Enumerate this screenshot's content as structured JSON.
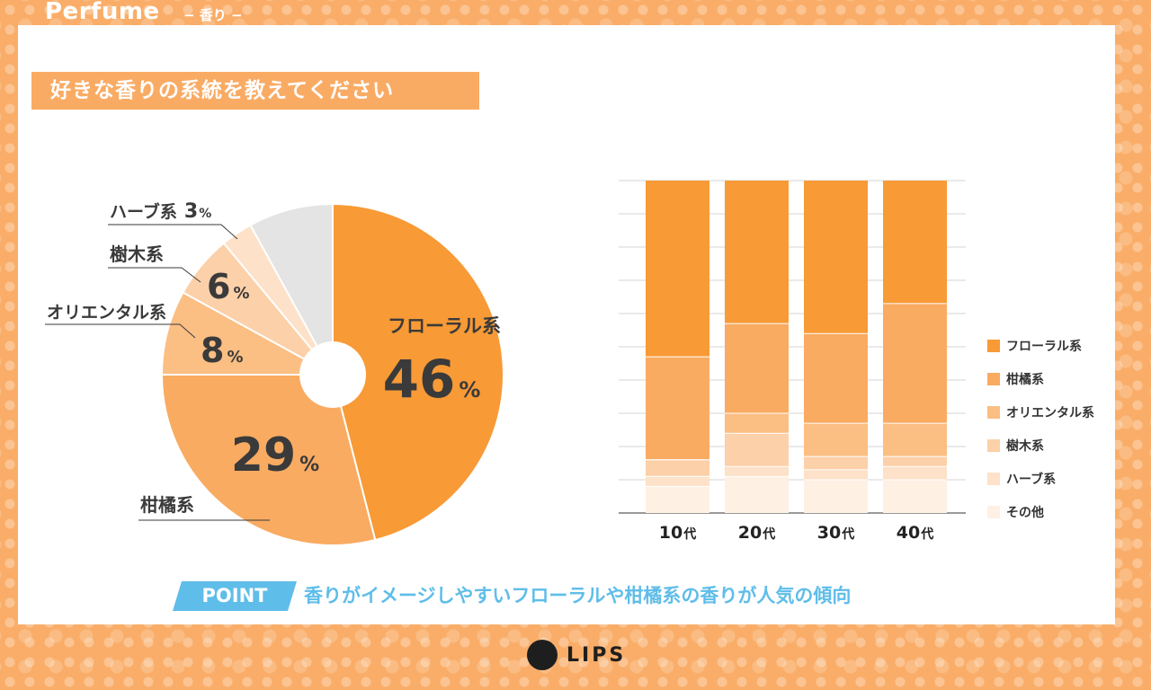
{
  "header": {
    "title": "Perfume",
    "subtitle": "− 香り −"
  },
  "question": "好きな香りの系統を教えてください",
  "point": {
    "label": "POINT",
    "text": "香りがイメージしやすいフローラルや柑橘系の香りが人気の傾向"
  },
  "logo": {
    "text": "LIPS"
  },
  "colors": {
    "floral": "#f89a36",
    "citrus": "#f9ab61",
    "oriental": "#fbbe83",
    "wood": "#fcd0a8",
    "herb": "#fde1c8",
    "other": "#fef0e3",
    "pie_other": "#e4e4e4",
    "question_bg": "#f9ab64",
    "point_blue": "#5fbde9"
  },
  "chart_data": [
    {
      "type": "pie",
      "slices": [
        {
          "name": "フローラル系",
          "value": 46,
          "label_name": "フローラル系",
          "label_value": "46",
          "unit": "%"
        },
        {
          "name": "柑橘系",
          "value": 29,
          "label_name": "柑橘系",
          "label_value": "29",
          "unit": "%"
        },
        {
          "name": "オリエンタル系",
          "value": 8,
          "label_name": "オリエンタル系",
          "label_value": "8",
          "unit": "%"
        },
        {
          "name": "樹木系",
          "value": 6,
          "label_name": "樹木系",
          "label_value": "6",
          "unit": "%"
        },
        {
          "name": "ハーブ系",
          "value": 3,
          "label_name": "ハーブ系",
          "label_value": "3",
          "unit": "%"
        },
        {
          "name": "その他",
          "value": 8,
          "label_name": "",
          "label_value": "",
          "unit": ""
        }
      ]
    },
    {
      "type": "bar",
      "stacked": true,
      "categories": [
        "10代",
        "20代",
        "30代",
        "40代"
      ],
      "ylim": [
        0,
        100
      ],
      "grid": true,
      "legend": "right",
      "series": [
        {
          "name": "その他",
          "values": [
            8,
            11,
            10,
            10
          ]
        },
        {
          "name": "ハーブ系",
          "values": [
            3,
            3,
            3,
            4
          ]
        },
        {
          "name": "樹木系",
          "values": [
            5,
            10,
            4,
            3
          ]
        },
        {
          "name": "オリエンタル系",
          "values": [
            0,
            6,
            10,
            10
          ]
        },
        {
          "name": "柑橘系",
          "values": [
            31,
            27,
            27,
            36
          ]
        },
        {
          "name": "フローラル系",
          "values": [
            53,
            43,
            46,
            37
          ]
        }
      ]
    }
  ]
}
